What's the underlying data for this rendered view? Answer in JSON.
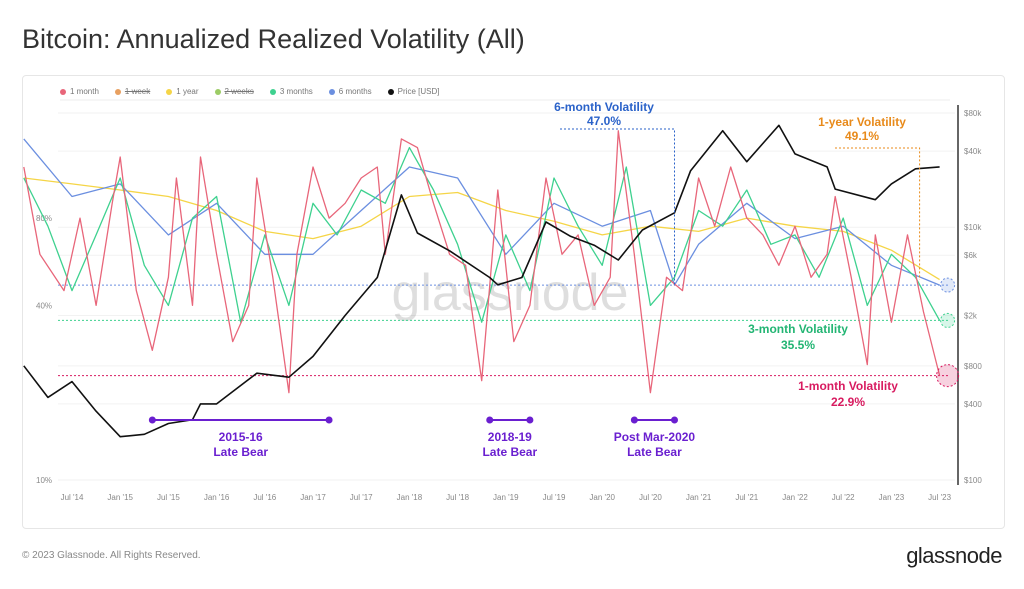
{
  "title": "Bitcoin: Annualized Realized Volatility (All)",
  "footer": "© 2023 Glassnode. All Rights Reserved.",
  "brand": "glassnode",
  "watermark": "glassnode",
  "chart_data": {
    "type": "line",
    "title": "Bitcoin: Annualized Realized Volatility (All)",
    "legend_position": "top-left",
    "legend": [
      {
        "label": "1 month",
        "color": "#e8667a",
        "strike": false
      },
      {
        "label": "1 week",
        "color": "#e8a060",
        "strike": true
      },
      {
        "label": "1 year",
        "color": "#f5d547",
        "strike": false
      },
      {
        "label": "2 weeks",
        "color": "#9ccc65",
        "strike": true
      },
      {
        "label": "3 months",
        "color": "#3ed18f",
        "strike": false
      },
      {
        "label": "6 months",
        "color": "#6b8fe0",
        "strike": false
      },
      {
        "label": "Price [USD]",
        "color": "#111111",
        "strike": false
      }
    ],
    "y_left": {
      "scale": "log",
      "range": [
        10,
        200
      ],
      "ticks": [
        "10%",
        "40%",
        "80%"
      ],
      "tick_values": [
        10,
        40,
        80
      ]
    },
    "y_right": {
      "scale": "log",
      "range": [
        100,
        90000
      ],
      "ticks": [
        "$100",
        "$400",
        "$800",
        "$2k",
        "$6k",
        "$10k",
        "$40k",
        "$80k"
      ],
      "tick_values": [
        100,
        400,
        800,
        2000,
        6000,
        10000,
        40000,
        80000
      ]
    },
    "x_range": [
      "2014-01",
      "2023-09"
    ],
    "x_ticks": [
      "Jul '14",
      "Jan '15",
      "Jul '15",
      "Jan '16",
      "Jul '16",
      "Jan '17",
      "Jul '17",
      "Jan '18",
      "Jul '18",
      "Jan '19",
      "Jul '19",
      "Jan '20",
      "Jul '20",
      "Jan '21",
      "Jul '21",
      "Jan '22",
      "Jul '22",
      "Jan '23",
      "Jul '23"
    ],
    "x_tick_dates": [
      "2014-07",
      "2015-01",
      "2015-07",
      "2016-01",
      "2016-07",
      "2017-01",
      "2017-07",
      "2018-01",
      "2018-07",
      "2019-01",
      "2019-07",
      "2020-01",
      "2020-07",
      "2021-01",
      "2021-07",
      "2022-01",
      "2022-07",
      "2023-01",
      "2023-07"
    ],
    "grid": true,
    "series": [
      {
        "name": "1 year",
        "color": "#f5d547",
        "axis": "left",
        "points": [
          [
            "2014-01",
            110
          ],
          [
            "2014-07",
            105
          ],
          [
            "2015-01",
            100
          ],
          [
            "2015-07",
            95
          ],
          [
            "2016-01",
            85
          ],
          [
            "2016-07",
            72
          ],
          [
            "2017-01",
            68
          ],
          [
            "2017-07",
            75
          ],
          [
            "2018-01",
            95
          ],
          [
            "2018-07",
            98
          ],
          [
            "2019-01",
            85
          ],
          [
            "2019-07",
            78
          ],
          [
            "2020-01",
            70
          ],
          [
            "2020-07",
            75
          ],
          [
            "2021-01",
            72
          ],
          [
            "2021-07",
            80
          ],
          [
            "2022-01",
            75
          ],
          [
            "2022-07",
            72
          ],
          [
            "2023-01",
            62
          ],
          [
            "2023-07",
            49.1
          ]
        ]
      },
      {
        "name": "6 months",
        "color": "#6b8fe0",
        "axis": "left",
        "points": [
          [
            "2014-01",
            150
          ],
          [
            "2014-07",
            95
          ],
          [
            "2015-01",
            105
          ],
          [
            "2015-07",
            70
          ],
          [
            "2016-01",
            90
          ],
          [
            "2016-07",
            60
          ],
          [
            "2017-01",
            60
          ],
          [
            "2017-07",
            85
          ],
          [
            "2018-01",
            120
          ],
          [
            "2018-07",
            110
          ],
          [
            "2019-01",
            60
          ],
          [
            "2019-07",
            90
          ],
          [
            "2020-01",
            75
          ],
          [
            "2020-07",
            85
          ],
          [
            "2020-10",
            47
          ],
          [
            "2021-01",
            65
          ],
          [
            "2021-07",
            90
          ],
          [
            "2022-01",
            68
          ],
          [
            "2022-07",
            75
          ],
          [
            "2023-01",
            55
          ],
          [
            "2023-07",
            47
          ]
        ]
      },
      {
        "name": "3 months",
        "color": "#3ed18f",
        "axis": "left",
        "points": [
          [
            "2014-01",
            110
          ],
          [
            "2014-04",
            75
          ],
          [
            "2014-07",
            45
          ],
          [
            "2014-10",
            70
          ],
          [
            "2015-01",
            110
          ],
          [
            "2015-04",
            55
          ],
          [
            "2015-07",
            40
          ],
          [
            "2015-10",
            80
          ],
          [
            "2016-01",
            95
          ],
          [
            "2016-04",
            35
          ],
          [
            "2016-07",
            70
          ],
          [
            "2016-10",
            40
          ],
          [
            "2017-01",
            90
          ],
          [
            "2017-04",
            70
          ],
          [
            "2017-07",
            100
          ],
          [
            "2017-10",
            90
          ],
          [
            "2018-01",
            140
          ],
          [
            "2018-04",
            100
          ],
          [
            "2018-07",
            65
          ],
          [
            "2018-10",
            35
          ],
          [
            "2019-01",
            70
          ],
          [
            "2019-04",
            45
          ],
          [
            "2019-07",
            110
          ],
          [
            "2019-10",
            75
          ],
          [
            "2020-01",
            55
          ],
          [
            "2020-04",
            120
          ],
          [
            "2020-07",
            40
          ],
          [
            "2020-10",
            50
          ],
          [
            "2021-01",
            85
          ],
          [
            "2021-04",
            75
          ],
          [
            "2021-07",
            100
          ],
          [
            "2021-10",
            65
          ],
          [
            "2022-01",
            70
          ],
          [
            "2022-04",
            50
          ],
          [
            "2022-07",
            80
          ],
          [
            "2022-10",
            40
          ],
          [
            "2023-01",
            60
          ],
          [
            "2023-04",
            50
          ],
          [
            "2023-07",
            35.5
          ]
        ]
      },
      {
        "name": "1 month",
        "color": "#e8667a",
        "axis": "left",
        "points": [
          [
            "2014-01",
            120
          ],
          [
            "2014-03",
            60
          ],
          [
            "2014-06",
            45
          ],
          [
            "2014-08",
            80
          ],
          [
            "2014-10",
            40
          ],
          [
            "2014-12",
            90
          ],
          [
            "2015-01",
            130
          ],
          [
            "2015-03",
            45
          ],
          [
            "2015-05",
            28
          ],
          [
            "2015-07",
            50
          ],
          [
            "2015-08",
            110
          ],
          [
            "2015-10",
            40
          ],
          [
            "2015-11",
            130
          ],
          [
            "2016-01",
            60
          ],
          [
            "2016-03",
            30
          ],
          [
            "2016-05",
            40
          ],
          [
            "2016-06",
            110
          ],
          [
            "2016-08",
            50
          ],
          [
            "2016-10",
            20
          ],
          [
            "2016-11",
            60
          ],
          [
            "2017-01",
            120
          ],
          [
            "2017-03",
            80
          ],
          [
            "2017-05",
            90
          ],
          [
            "2017-07",
            110
          ],
          [
            "2017-09",
            120
          ],
          [
            "2017-10",
            60
          ],
          [
            "2017-12",
            150
          ],
          [
            "2018-02",
            140
          ],
          [
            "2018-04",
            90
          ],
          [
            "2018-06",
            60
          ],
          [
            "2018-08",
            55
          ],
          [
            "2018-10",
            22
          ],
          [
            "2018-12",
            100
          ],
          [
            "2019-02",
            30
          ],
          [
            "2019-04",
            40
          ],
          [
            "2019-06",
            110
          ],
          [
            "2019-08",
            60
          ],
          [
            "2019-10",
            70
          ],
          [
            "2019-12",
            40
          ],
          [
            "2020-02",
            50
          ],
          [
            "2020-03",
            160
          ],
          [
            "2020-05",
            60
          ],
          [
            "2020-07",
            20
          ],
          [
            "2020-09",
            50
          ],
          [
            "2020-11",
            45
          ],
          [
            "2021-01",
            110
          ],
          [
            "2021-03",
            75
          ],
          [
            "2021-05",
            120
          ],
          [
            "2021-07",
            80
          ],
          [
            "2021-09",
            70
          ],
          [
            "2021-11",
            55
          ],
          [
            "2022-01",
            75
          ],
          [
            "2022-03",
            50
          ],
          [
            "2022-05",
            60
          ],
          [
            "2022-06",
            95
          ],
          [
            "2022-08",
            50
          ],
          [
            "2022-10",
            25
          ],
          [
            "2022-11",
            70
          ],
          [
            "2023-01",
            35
          ],
          [
            "2023-03",
            70
          ],
          [
            "2023-05",
            38
          ],
          [
            "2023-07",
            22.9
          ]
        ]
      },
      {
        "name": "Price [USD]",
        "color": "#111111",
        "axis": "right",
        "points": [
          [
            "2014-01",
            800
          ],
          [
            "2014-04",
            450
          ],
          [
            "2014-07",
            600
          ],
          [
            "2014-10",
            350
          ],
          [
            "2015-01",
            220
          ],
          [
            "2015-04",
            230
          ],
          [
            "2015-07",
            280
          ],
          [
            "2015-10",
            300
          ],
          [
            "2015-11",
            400
          ],
          [
            "2016-01",
            400
          ],
          [
            "2016-06",
            700
          ],
          [
            "2016-10",
            650
          ],
          [
            "2017-01",
            950
          ],
          [
            "2017-05",
            2000
          ],
          [
            "2017-09",
            4000
          ],
          [
            "2017-12",
            18000
          ],
          [
            "2018-02",
            9000
          ],
          [
            "2018-06",
            6500
          ],
          [
            "2018-11",
            4000
          ],
          [
            "2018-12",
            3500
          ],
          [
            "2019-03",
            4000
          ],
          [
            "2019-06",
            11000
          ],
          [
            "2019-09",
            8500
          ],
          [
            "2019-12",
            7200
          ],
          [
            "2020-03",
            5500
          ],
          [
            "2020-06",
            9500
          ],
          [
            "2020-10",
            13000
          ],
          [
            "2020-12",
            28000
          ],
          [
            "2021-04",
            58000
          ],
          [
            "2021-07",
            33000
          ],
          [
            "2021-11",
            64000
          ],
          [
            "2022-01",
            38000
          ],
          [
            "2022-05",
            30000
          ],
          [
            "2022-06",
            20000
          ],
          [
            "2022-11",
            16500
          ],
          [
            "2023-01",
            22000
          ],
          [
            "2023-04",
            29000
          ],
          [
            "2023-07",
            30000
          ]
        ]
      }
    ],
    "annotations": [
      {
        "label": "6-month Volatility",
        "value": "47.0%",
        "color": "#2a62c9",
        "date": "2020-10",
        "level": 47.0
      },
      {
        "label": "1-year Volatility",
        "value": "49.1%",
        "color": "#e88a1a",
        "date": "2023-07",
        "level": 49.1
      },
      {
        "label": "3-month Volatility",
        "value": "35.5%",
        "color": "#22b573",
        "date": "2023-07",
        "level": 35.5
      },
      {
        "label": "1-month Volatility",
        "value": "22.9%",
        "color": "#d81b60",
        "date": "2023-07",
        "level": 22.9
      }
    ],
    "periods": [
      {
        "label": "2015-16",
        "sublabel": "Late Bear",
        "start": "2015-05",
        "end": "2017-03"
      },
      {
        "label": "2018-19",
        "sublabel": "Late Bear",
        "start": "2018-11",
        "end": "2019-04"
      },
      {
        "label": "Post Mar-2020",
        "sublabel": "Late Bear",
        "start": "2020-05",
        "end": "2020-10"
      }
    ],
    "period_color": "#6a1fd0"
  }
}
